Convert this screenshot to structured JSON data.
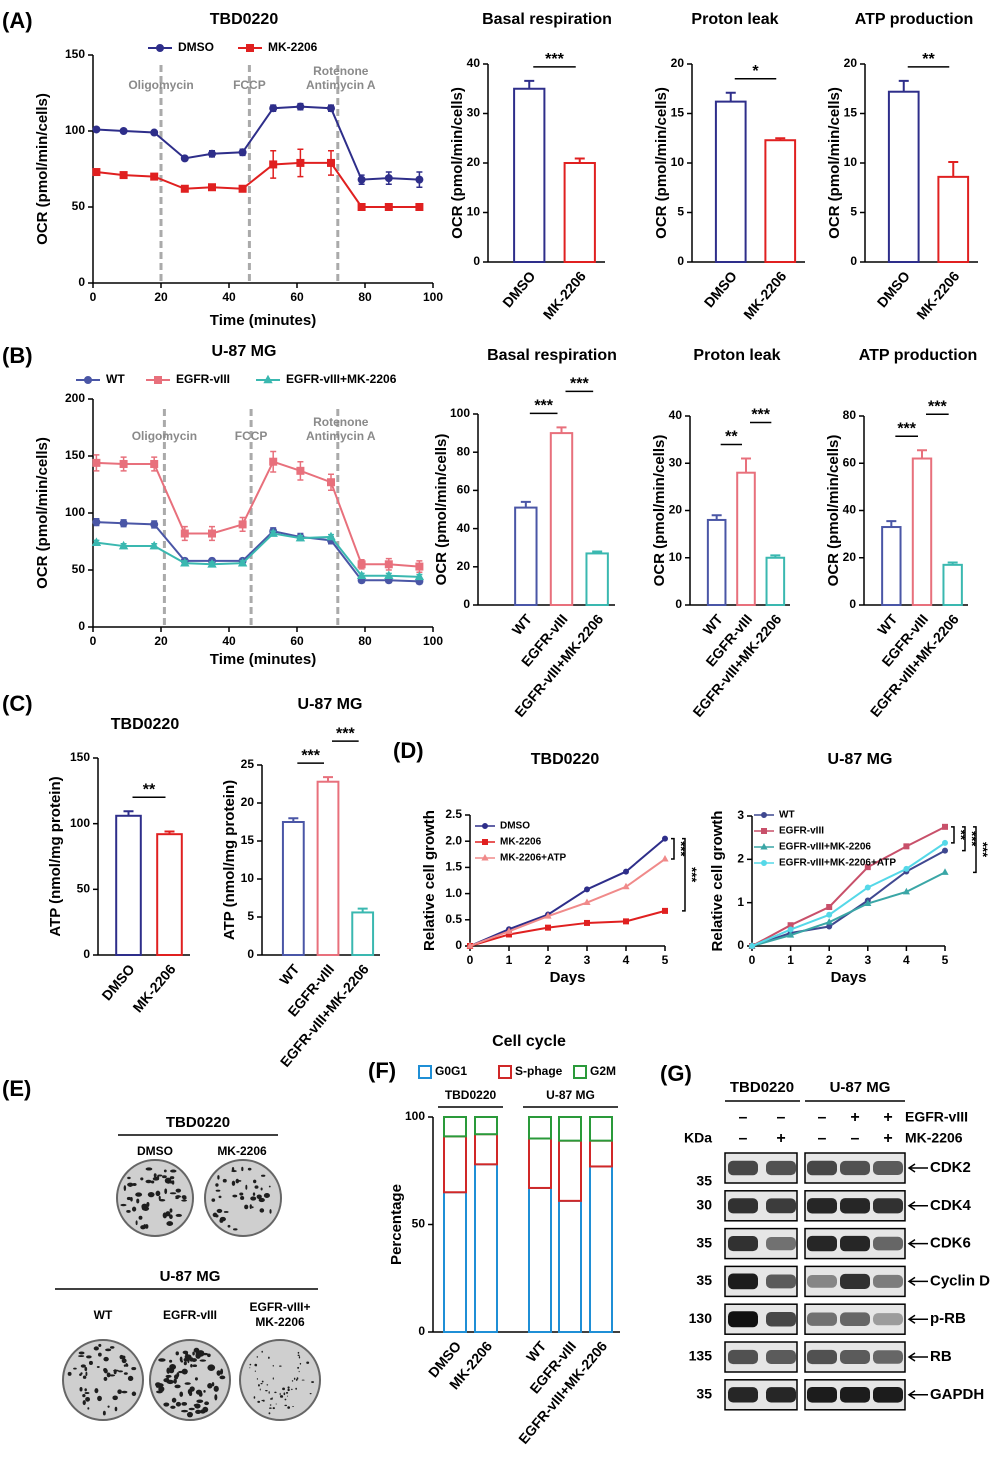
{
  "panel_labels": [
    "(A)",
    "(B)",
    "(C)",
    "(D)",
    "(E)",
    "(F)",
    "(G)"
  ],
  "chart_data": [
    {
      "type": "line",
      "title": "TBD0220",
      "x": [
        1,
        9,
        18,
        27,
        35,
        44,
        53,
        61,
        70,
        79,
        87,
        96
      ],
      "series": [
        {
          "name": "DMSO",
          "color": "#2e2e8a",
          "marker": "circle",
          "values": [
            101,
            100,
            99,
            82,
            85,
            86,
            115,
            116,
            115,
            68,
            69,
            68
          ],
          "errors": [
            1,
            1,
            1,
            1,
            2,
            2,
            2,
            2,
            2,
            3,
            4,
            5
          ]
        },
        {
          "name": "MK-2206",
          "color": "#e02020",
          "marker": "square",
          "values": [
            73,
            71,
            70,
            62,
            63,
            62,
            78,
            79,
            79,
            50,
            50,
            50
          ],
          "errors": [
            1,
            1,
            1,
            1,
            1,
            1,
            9,
            9,
            8,
            1,
            1,
            1
          ]
        }
      ],
      "xlim": [
        0,
        100
      ],
      "xticks": [
        0,
        20,
        40,
        60,
        80,
        100
      ],
      "ylim": [
        0,
        150
      ],
      "yticks": [
        0,
        50,
        100,
        150
      ],
      "xlabel": "Time (minutes)",
      "ylabel": "OCR (pmol/min/cells)",
      "legend": "top",
      "annotations": [
        {
          "x": 20,
          "label": "Oligomycin"
        },
        {
          "x": 46,
          "label": "FCCP"
        },
        {
          "x": 72,
          "label": [
            "Rotenone",
            "Antimycin A"
          ]
        }
      ]
    },
    {
      "type": "bar",
      "title": "Basal respiration",
      "categories": [
        "DMSO",
        "MK-2206"
      ],
      "values": [
        35,
        20
      ],
      "errors": [
        1.6,
        0.9
      ],
      "colors": [
        "#2e2e8a",
        "#e02020"
      ],
      "ylim": [
        0,
        40
      ],
      "yticks": [
        0,
        10,
        20,
        30,
        40
      ],
      "ylabel": "OCR (pmol/min/cells)",
      "sig": [
        {
          "from": 0,
          "to": 1,
          "label": "***"
        }
      ]
    },
    {
      "type": "bar",
      "title": "Proton leak",
      "categories": [
        "DMSO",
        "MK-2206"
      ],
      "values": [
        16.2,
        12.3
      ],
      "errors": [
        0.9,
        0.2
      ],
      "colors": [
        "#2e2e8a",
        "#e02020"
      ],
      "ylim": [
        0,
        20
      ],
      "yticks": [
        0,
        5,
        10,
        15,
        20
      ],
      "ylabel": "OCR (pmol/min/cells)",
      "sig": [
        {
          "from": 0,
          "to": 1,
          "label": "*"
        }
      ]
    },
    {
      "type": "bar",
      "title": "ATP production",
      "categories": [
        "DMSO",
        "MK-2206"
      ],
      "values": [
        17.2,
        8.6
      ],
      "errors": [
        1.1,
        1.5
      ],
      "colors": [
        "#2e2e8a",
        "#e02020"
      ],
      "ylim": [
        0,
        20
      ],
      "yticks": [
        0,
        5,
        10,
        15,
        20
      ],
      "ylabel": "OCR (pmol/min/cells)",
      "sig": [
        {
          "from": 0,
          "to": 1,
          "label": "**"
        }
      ]
    },
    {
      "type": "line",
      "title": "U-87 MG",
      "x": [
        1,
        9,
        18,
        27,
        35,
        44,
        53,
        61,
        70,
        79,
        87,
        96
      ],
      "series": [
        {
          "name": "WT",
          "color": "#4a56a6",
          "marker": "circle",
          "values": [
            92,
            91,
            90,
            58,
            58,
            58,
            84,
            79,
            76,
            41,
            41,
            40
          ],
          "errors": [
            3,
            3,
            3,
            2,
            2,
            2,
            3,
            3,
            3,
            2,
            2,
            2
          ]
        },
        {
          "name": "EGFR-vIII",
          "color": "#e8707c",
          "marker": "square",
          "values": [
            144,
            143,
            143,
            82,
            82,
            90,
            145,
            137,
            127,
            55,
            55,
            53
          ],
          "errors": [
            7,
            6,
            6,
            6,
            6,
            6,
            9,
            8,
            7,
            4,
            5,
            5
          ]
        },
        {
          "name": "EGFR-vIII+MK-2206",
          "color": "#3ab8b0",
          "marker": "triangle",
          "values": [
            74,
            71,
            71,
            56,
            55,
            56,
            82,
            78,
            79,
            45,
            45,
            44
          ],
          "errors": [
            2,
            2,
            2,
            2,
            2,
            2,
            2,
            2,
            2,
            2,
            2,
            2
          ]
        }
      ],
      "xlim": [
        0,
        100
      ],
      "xticks": [
        0,
        20,
        40,
        60,
        80,
        100
      ],
      "ylim": [
        0,
        200
      ],
      "yticks": [
        0,
        50,
        100,
        150,
        200
      ],
      "xlabel": "Time (minutes)",
      "ylabel": "OCR (pmol/min/cells)",
      "legend": "top",
      "annotations": [
        {
          "x": 21,
          "label": "Oligomycin"
        },
        {
          "x": 46.5,
          "label": "FCCP"
        },
        {
          "x": 72,
          "label": [
            "Rotenone",
            "Antimycin A"
          ]
        }
      ]
    },
    {
      "type": "bar",
      "title": "Basal respiration",
      "categories": [
        "WT",
        "EGFR-vIII",
        "EGFR-vIII+MK-2206"
      ],
      "values": [
        51,
        90,
        27
      ],
      "errors": [
        3,
        3,
        1
      ],
      "colors": [
        "#4a56a6",
        "#e8707c",
        "#3ab8b0"
      ],
      "ylim": [
        0,
        100
      ],
      "yticks": [
        0,
        20,
        40,
        60,
        80,
        100
      ],
      "ylabel": "OCR (pmol/min/cells)",
      "sig": [
        {
          "from": 0,
          "to": 1,
          "label": "***"
        },
        {
          "from": 1,
          "to": 2,
          "label": "***"
        }
      ]
    },
    {
      "type": "bar",
      "title": "Proton leak",
      "categories": [
        "WT",
        "EGFR-vIII",
        "EGFR-vIII+MK-2206"
      ],
      "values": [
        18,
        28,
        10
      ],
      "errors": [
        1,
        3,
        0.5
      ],
      "colors": [
        "#4a56a6",
        "#e8707c",
        "#3ab8b0"
      ],
      "ylim": [
        0,
        40
      ],
      "yticks": [
        0,
        10,
        20,
        30,
        40
      ],
      "ylabel": "OCR (pmol/min/cells)",
      "sig": [
        {
          "from": 0,
          "to": 1,
          "label": "**"
        },
        {
          "from": 1,
          "to": 2,
          "label": "***"
        }
      ]
    },
    {
      "type": "bar",
      "title": "ATP production",
      "categories": [
        "WT",
        "EGFR-vIII",
        "EGFR-vIII+MK-2206"
      ],
      "values": [
        33,
        62,
        17
      ],
      "errors": [
        2.5,
        3.5,
        1
      ],
      "colors": [
        "#4a56a6",
        "#e8707c",
        "#3ab8b0"
      ],
      "ylim": [
        0,
        80
      ],
      "yticks": [
        0,
        20,
        40,
        60,
        80
      ],
      "ylabel": "OCR (pmol/min/cells)",
      "sig": [
        {
          "from": 0,
          "to": 1,
          "label": "***"
        },
        {
          "from": 1,
          "to": 2,
          "label": "***"
        }
      ]
    },
    {
      "type": "bar",
      "title": "TBD0220",
      "categories": [
        "DMSO",
        "MK-2206"
      ],
      "values": [
        106,
        92
      ],
      "errors": [
        3.5,
        2
      ],
      "colors": [
        "#2e2e8a",
        "#e02020"
      ],
      "ylim": [
        0,
        150
      ],
      "yticks": [
        0,
        50,
        100,
        150
      ],
      "ylabel": "ATP (nmol/mg protein)",
      "sig": [
        {
          "from": 0,
          "to": 1,
          "label": "**"
        }
      ]
    },
    {
      "type": "bar",
      "title": "U-87 MG",
      "categories": [
        "WT",
        "EGFR-vIII",
        "EGFR-vIII+MK-2206"
      ],
      "values": [
        17.5,
        22.8,
        5.6
      ],
      "errors": [
        0.5,
        0.6,
        0.5
      ],
      "colors": [
        "#4a56a6",
        "#e8707c",
        "#3ab8b0"
      ],
      "ylim": [
        0,
        25
      ],
      "yticks": [
        0,
        5,
        10,
        15,
        20,
        25
      ],
      "ylabel": "ATP (nmol/mg protein)",
      "sig": [
        {
          "from": 0,
          "to": 1,
          "label": "***"
        },
        {
          "from": 1,
          "to": 2,
          "label": "***"
        }
      ]
    },
    {
      "type": "line",
      "title": "TBD0220",
      "x": [
        0,
        1,
        2,
        3,
        4,
        5
      ],
      "series": [
        {
          "name": "DMSO",
          "color": "#2e2e8a",
          "marker": "circle",
          "values": [
            0,
            0.32,
            0.6,
            1.08,
            1.42,
            2.05
          ]
        },
        {
          "name": "MK-2206",
          "color": "#e02020",
          "marker": "square",
          "values": [
            0,
            0.22,
            0.35,
            0.44,
            0.47,
            0.67
          ]
        },
        {
          "name": "MK-2206+ATP",
          "color": "#f08a8a",
          "marker": "triangle",
          "values": [
            0,
            0.28,
            0.57,
            0.83,
            1.13,
            1.66
          ]
        }
      ],
      "xlim": [
        0,
        5
      ],
      "xticks": [
        0,
        1,
        2,
        3,
        4,
        5
      ],
      "ylim": [
        0,
        2.5
      ],
      "yticks": [
        0,
        0.5,
        {
          "value": 1,
          "label": "1.0"
        },
        1.5,
        {
          "value": 2,
          "label": "2.0"
        },
        2.5
      ],
      "xlabel": "Days",
      "ylabel": "Relative cell growth",
      "legend": "top-left",
      "sig": [
        {
          "from": 0,
          "to": 2,
          "label": "***"
        },
        {
          "from": 0,
          "to": 1,
          "label": "***"
        }
      ]
    },
    {
      "type": "line",
      "title": "U-87 MG",
      "x": [
        0,
        1,
        2,
        3,
        4,
        5
      ],
      "series": [
        {
          "name": "WT",
          "color": "#3f4890",
          "marker": "circle",
          "values": [
            0,
            0.3,
            0.45,
            1.05,
            1.72,
            2.2
          ]
        },
        {
          "name": "EGFR-vIII",
          "color": "#c8506a",
          "marker": "square",
          "values": [
            0,
            0.48,
            0.9,
            1.82,
            2.3,
            2.75
          ]
        },
        {
          "name": "EGFR-vIII+MK-2206",
          "color": "#3aa6a6",
          "marker": "triangle",
          "values": [
            0,
            0.25,
            0.55,
            0.98,
            1.25,
            1.7
          ]
        },
        {
          "name": "EGFR-vIII+MK-2206+ATP",
          "color": "#55d8e8",
          "marker": "circle",
          "values": [
            0,
            0.38,
            0.72,
            1.35,
            1.78,
            2.38
          ]
        }
      ],
      "xlim": [
        0,
        5
      ],
      "xticks": [
        0,
        1,
        2,
        3,
        4,
        5
      ],
      "ylim": [
        0,
        3
      ],
      "yticks": [
        0,
        1,
        2,
        3
      ],
      "xlabel": "Days",
      "ylabel": "Relative cell growth",
      "legend": "top-left",
      "sig": [
        {
          "from": 1,
          "to": 3,
          "label": "**"
        },
        {
          "from": 1,
          "to": 0,
          "label": "***"
        },
        {
          "from": 1,
          "to": 2,
          "label": "***"
        }
      ]
    },
    {
      "type": "stacked_bar",
      "title": "Cell cycle",
      "categories": [
        "DMSO",
        "MK-2206",
        "WT",
        "EGFR-vIII",
        "EGFR-vIII+MK-2206"
      ],
      "series": [
        {
          "name": "G0G1",
          "color": "#1f8fd6",
          "values": [
            65,
            78,
            67,
            61,
            77
          ]
        },
        {
          "name": "S-phage",
          "color": "#d02828",
          "values": [
            26,
            14,
            23,
            28,
            12
          ]
        },
        {
          "name": "G2M",
          "color": "#2a9a3a",
          "values": [
            9,
            8,
            10,
            11,
            11
          ]
        }
      ],
      "ylim": [
        0,
        100
      ],
      "yticks": [
        0,
        50,
        100
      ],
      "ylabel": "Percentage",
      "legend": "top",
      "groups": [
        {
          "label": "TBD0220",
          "from": 0,
          "to": 1
        },
        {
          "label": "U-87 MG",
          "from": 2,
          "to": 4
        }
      ]
    }
  ],
  "colony_assay": {
    "groups": [
      {
        "title": "TBD0220",
        "items": [
          "DMSO",
          "MK-2206"
        ]
      },
      {
        "title": "U-87 MG",
        "items": [
          "WT",
          "EGFR-vIII",
          [
            "EGFR-vIII+",
            "MK-2206"
          ]
        ]
      }
    ]
  },
  "western_blot": {
    "groups": [
      "TBD0220",
      "U-87 MG"
    ],
    "kda_label": "KDa",
    "conditions": [
      {
        "label": "EGFR-vIII",
        "signs": [
          "–",
          "–",
          "–",
          "+",
          "+"
        ]
      },
      {
        "label": "MK-2206",
        "signs": [
          "–",
          "+",
          "–",
          "–",
          "+"
        ]
      }
    ],
    "rows": [
      {
        "protein": "CDK2",
        "kda": 35
      },
      {
        "protein": "CDK4",
        "kda": 30
      },
      {
        "protein": "CDK6",
        "kda": 35
      },
      {
        "protein": "Cyclin D",
        "kda": 35
      },
      {
        "protein": "p-RB",
        "kda": 130
      },
      {
        "protein": "RB",
        "kda": 135
      },
      {
        "protein": "GAPDH",
        "kda": 35
      }
    ]
  }
}
